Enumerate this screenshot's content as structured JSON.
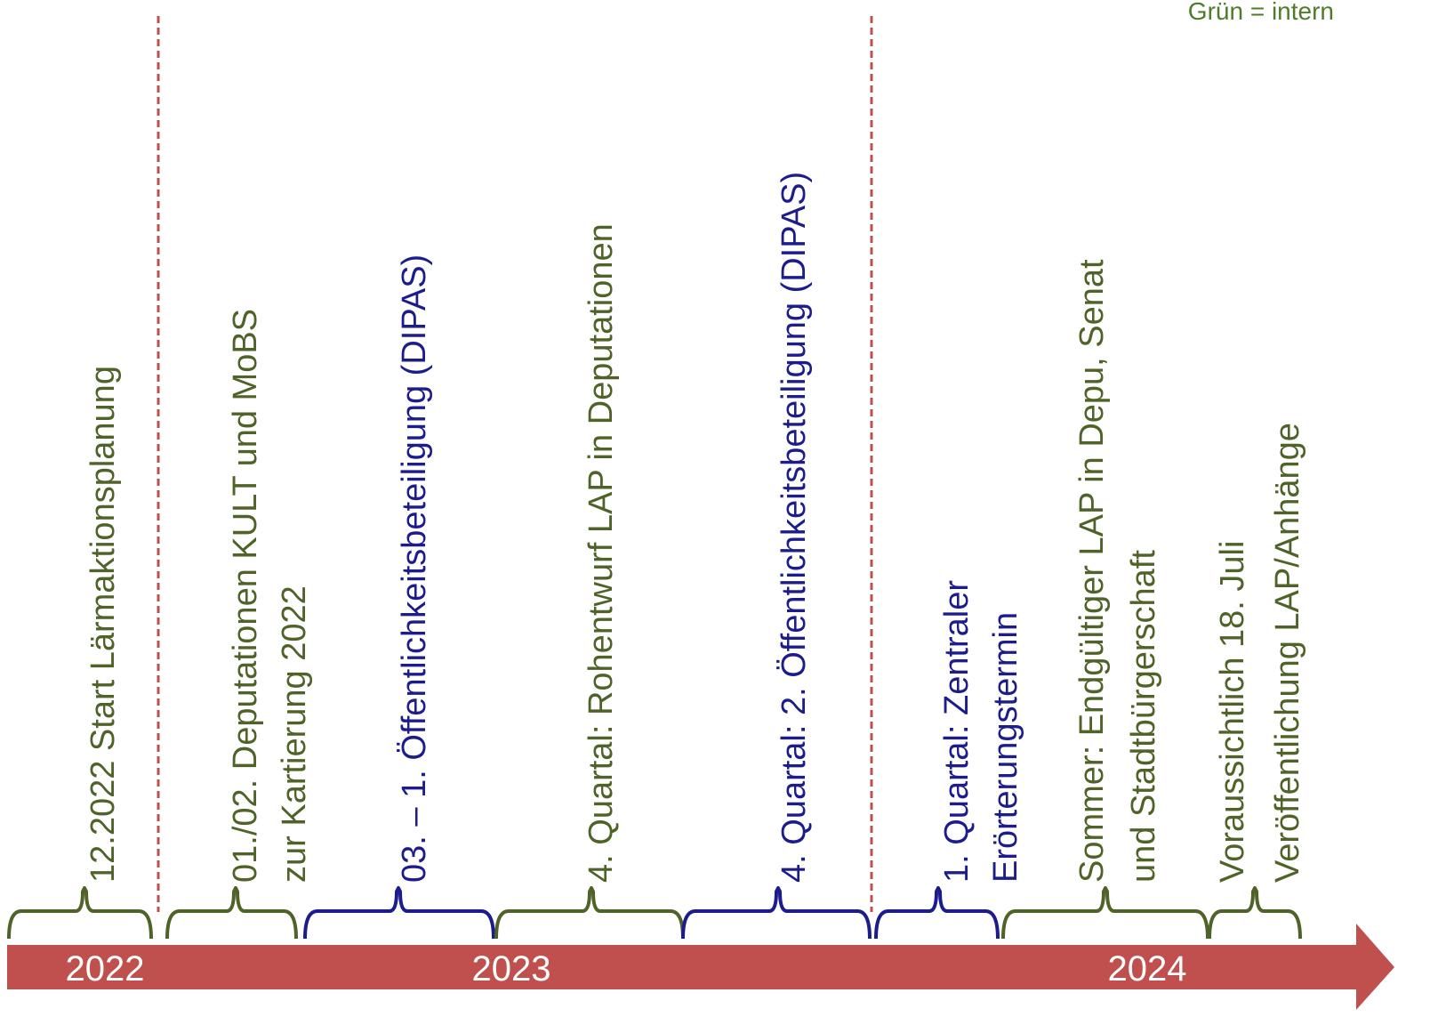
{
  "legend": "Grün = intern",
  "years": [
    "2022",
    "2023",
    "2024"
  ],
  "events": [
    {
      "lines": [
        "12.2022 Start Lärmaktionsplanung"
      ]
    },
    {
      "lines": [
        "01./02. Deputationen KULT und MoBS",
        "zur Kartierung 2022"
      ]
    },
    {
      "lines": [
        "03. – 1. Öffentlichkeitsbeteiligung (DIPAS)"
      ]
    },
    {
      "lines": [
        "4. Quartal:  Rohentwurf LAP in Deputationen"
      ]
    },
    {
      "lines": [
        "4. Quartal: 2. Öffentlichkeitsbeteiligung (DIPAS)"
      ]
    },
    {
      "lines": [
        "1. Quartal: Zentraler",
        "Erörterungstermin"
      ]
    },
    {
      "lines": [
        "Sommer: Endgültiger LAP in Depu, Senat",
        "und Stadtbürgerschaft"
      ]
    },
    {
      "lines": [
        "Voraussichtlich 18. Juli",
        "Veröffentlichung LAP/Anhänge"
      ]
    }
  ]
}
